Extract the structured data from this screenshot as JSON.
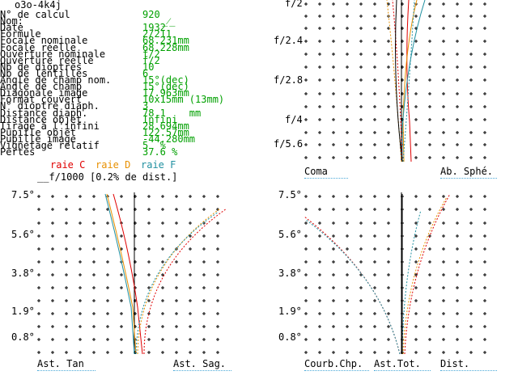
{
  "title": "o3o-4k4j",
  "params": [
    {
      "label": "N° de calcul",
      "value": "920"
    },
    {
      "label": "Nom:",
      "value": ""
    },
    {
      "label": "Date",
      "value": "1932"
    },
    {
      "label": "Formule",
      "value": "2/211"
    },
    {
      "label": "Focale nominale",
      "value": "68.231mm"
    },
    {
      "label": "Focale réelle",
      "value": "68.228mm"
    },
    {
      "label": "Ouverture nominale",
      "value": "f/2"
    },
    {
      "label": "Ouverture réelle",
      "value": "f/2"
    },
    {
      "label": "Nb de dioptres",
      "value": "10"
    },
    {
      "label": "Nb de lentilles",
      "value": "6"
    },
    {
      "label": "Angle de champ nom.",
      "value": "15°(dec)"
    },
    {
      "label": "Angle de champ",
      "value": "15°(dec)"
    },
    {
      "label": "Diagonale image",
      "value": "17.963mm"
    },
    {
      "label": "Format couvert",
      "value": "10x15mm (13mm)"
    },
    {
      "label": "N° dioptre diaph.",
      "value": "3"
    },
    {
      "label": "Distance diaph.",
      "value": "78.1    mm"
    },
    {
      "label": "Distance objet",
      "value": "Infini"
    },
    {
      "label": "Tirage à l'infini",
      "value": "28.694mm"
    },
    {
      "label": "Pupille objet",
      "value": "122.57mm"
    },
    {
      "label": "Pupille image",
      "value": "-44.280mm"
    },
    {
      "label": "Vignetage relatif",
      "value": "5  %"
    },
    {
      "label": "Pertes",
      "value": "37.6 %"
    }
  ],
  "legend": {
    "scale_note": "f/1000 [0.2% de dist.]",
    "raie_c": "raie C",
    "raie_d": "raie D",
    "raie_f": "raie F"
  },
  "colors": {
    "raie_c": "#e00000",
    "raie_d": "#e89000",
    "raie_f": "#2090a0",
    "value_green": "#00a000"
  },
  "coma_panel": {
    "y_labels": [
      "f/2",
      "f/2.4",
      "f/2.8",
      "f/4",
      "f/5.6"
    ],
    "bottom_left": "Coma",
    "bottom_right": "Ab. Sphé."
  },
  "ast_panel": {
    "y_labels": [
      "7.5°",
      "5.6°",
      "3.8°",
      "1.9°",
      "0.8°"
    ],
    "bottom_left": "Ast. Tan",
    "bottom_right": "Ast. Sag."
  },
  "curv_panel": {
    "y_labels": [
      "7.5°",
      "5.6°",
      "3.8°",
      "1.9°",
      "0.8°"
    ],
    "bottom_left": "Courb.Chp.",
    "bottom_mid": "Ast.Tot.",
    "bottom_right": "Dist."
  }
}
